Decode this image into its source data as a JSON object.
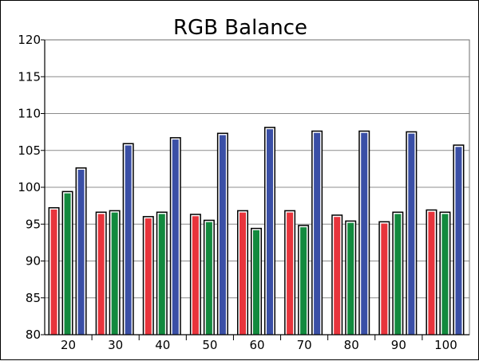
{
  "chart_data": {
    "type": "bar",
    "title": "RGB Balance",
    "xlabel": "",
    "ylabel": "",
    "categories": [
      "20",
      "30",
      "40",
      "50",
      "60",
      "70",
      "80",
      "90",
      "100"
    ],
    "series": [
      {
        "color": "#e8343c",
        "values": [
          97.3,
          96.7,
          96.1,
          96.4,
          96.9,
          96.9,
          96.3,
          95.4,
          97.0
        ]
      },
      {
        "color": "#128a3e",
        "values": [
          99.5,
          96.9,
          96.7,
          95.6,
          94.5,
          94.9,
          95.5,
          96.7,
          96.7
        ]
      },
      {
        "color": "#3a4fa6",
        "values": [
          102.7,
          106.0,
          106.8,
          107.4,
          108.2,
          107.7,
          107.7,
          107.6,
          105.8
        ]
      }
    ],
    "ylim": [
      80,
      120
    ],
    "yticks": [
      80,
      85,
      90,
      95,
      100,
      105,
      110,
      115,
      120
    ],
    "grid": true,
    "legend": "none"
  }
}
